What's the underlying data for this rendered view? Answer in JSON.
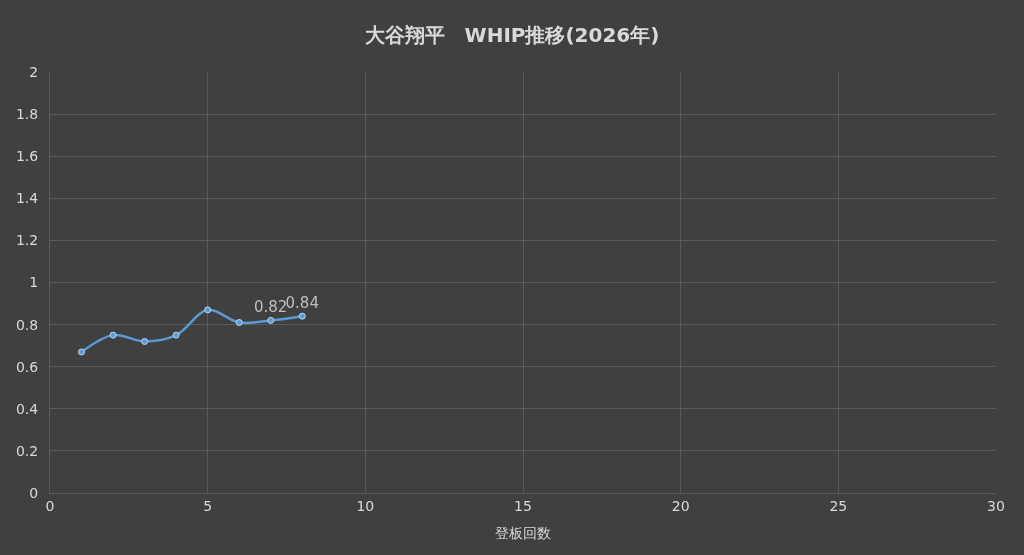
{
  "chart_data": {
    "type": "line",
    "title": "大谷翔平　WHIP推移(2026年)",
    "xlabel": "登板回数",
    "x": [
      1,
      2,
      3,
      4,
      5,
      6,
      7,
      8
    ],
    "series": [
      {
        "color": "#5b9bd5",
        "values": [
          0.67,
          0.75,
          0.72,
          0.75,
          0.87,
          0.81,
          0.82,
          0.84
        ],
        "value_labels": [
          null,
          null,
          null,
          null,
          null,
          null,
          "0.82",
          "0.84"
        ]
      }
    ],
    "xlim": [
      0,
      30
    ],
    "xticks": [
      0,
      5,
      10,
      15,
      20,
      25,
      30
    ],
    "ylim": [
      0,
      2
    ],
    "yticks": [
      0,
      0.2,
      0.4,
      0.6,
      0.8,
      1,
      1.2,
      1.4,
      1.6,
      1.8,
      2
    ],
    "grid": true,
    "marker": "circle",
    "line_style": "solid"
  }
}
